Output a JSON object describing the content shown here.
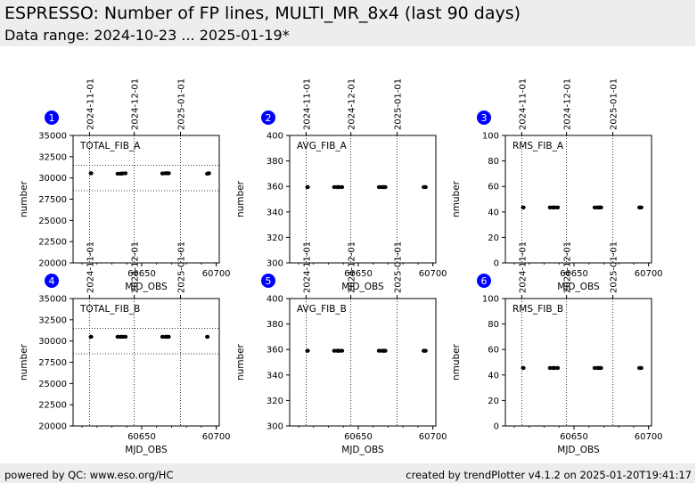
{
  "header": {
    "title": "ESPRESSO: Number of FP lines, MULTI_MR_8x4 (last 90 days)",
    "subtitle": "Data range: 2024-10-23 ... 2025-01-19*"
  },
  "footer": {
    "left": "powered by QC: www.eso.org/HC",
    "right": "created by trendPlotter v4.1.2 on 2025-01-20T19:41:17"
  },
  "colors": {
    "marker": "#000000",
    "badge": "#0000ff",
    "header_bg": "#ededed"
  },
  "date_ticks": [
    {
      "mjd": 60615,
      "label": "2024-11-01"
    },
    {
      "mjd": 60645,
      "label": "2024-12-01"
    },
    {
      "mjd": 60676,
      "label": "2025-01-01"
    }
  ],
  "chart_data": [
    {
      "panel": "1",
      "type": "scatter",
      "label": "TOTAL_FIB_A",
      "xlabel": "MJD_OBS",
      "ylabel": "number",
      "xlim": [
        60604,
        60702
      ],
      "ylim": [
        20000,
        35000
      ],
      "xticks": [
        60650,
        60700
      ],
      "yticks": [
        20000,
        22500,
        25000,
        27500,
        30000,
        32500,
        35000
      ],
      "hlines": [
        28500,
        31500
      ],
      "points": [
        [
          60616,
          30550
        ],
        [
          60634,
          30500
        ],
        [
          60636,
          30500
        ],
        [
          60637,
          30520
        ],
        [
          60639,
          30550
        ],
        [
          60664,
          30520
        ],
        [
          60666,
          30550
        ],
        [
          60667,
          30550
        ],
        [
          60668,
          30550
        ],
        [
          60694,
          30500
        ],
        [
          60695,
          30550
        ]
      ]
    },
    {
      "panel": "2",
      "type": "scatter",
      "label": "AVG_FIB_A",
      "xlabel": "MJD_OBS",
      "ylabel": "number",
      "xlim": [
        60604,
        60702
      ],
      "ylim": [
        300,
        400
      ],
      "xticks": [
        60650,
        60700
      ],
      "yticks": [
        300,
        320,
        340,
        360,
        380,
        400
      ],
      "hlines": [],
      "points": [
        [
          60616,
          359.5
        ],
        [
          60634,
          359.5
        ],
        [
          60636,
          359.5
        ],
        [
          60637,
          359.5
        ],
        [
          60639,
          359.5
        ],
        [
          60664,
          359.5
        ],
        [
          60666,
          359.5
        ],
        [
          60667,
          359.5
        ],
        [
          60668,
          359.5
        ],
        [
          60694,
          359.5
        ],
        [
          60695,
          359.5
        ]
      ]
    },
    {
      "panel": "3",
      "type": "scatter",
      "label": "RMS_FIB_A",
      "xlabel": "MJD_OBS",
      "ylabel": "nmuber",
      "xlim": [
        60604,
        60702
      ],
      "ylim": [
        0,
        100
      ],
      "xticks": [
        60650,
        60700
      ],
      "yticks": [
        0,
        20,
        40,
        60,
        80,
        100
      ],
      "hlines": [],
      "points": [
        [
          60616,
          43.5
        ],
        [
          60634,
          43.5
        ],
        [
          60636,
          43.5
        ],
        [
          60637,
          43.5
        ],
        [
          60639,
          43.5
        ],
        [
          60664,
          43.5
        ],
        [
          60666,
          43.5
        ],
        [
          60667,
          43.5
        ],
        [
          60668,
          43.5
        ],
        [
          60694,
          43.5
        ],
        [
          60695,
          43.5
        ]
      ]
    },
    {
      "panel": "4",
      "type": "scatter",
      "label": "TOTAL_FIB_B",
      "xlabel": "MJD_OBS",
      "ylabel": "number",
      "xlim": [
        60604,
        60702
      ],
      "ylim": [
        20000,
        35000
      ],
      "xticks": [
        60650,
        60700
      ],
      "yticks": [
        20000,
        22500,
        25000,
        27500,
        30000,
        32500,
        35000
      ],
      "hlines": [
        28500,
        31500
      ],
      "points": [
        [
          60616,
          30500
        ],
        [
          60634,
          30500
        ],
        [
          60636,
          30500
        ],
        [
          60637,
          30500
        ],
        [
          60639,
          30500
        ],
        [
          60664,
          30500
        ],
        [
          60666,
          30500
        ],
        [
          60667,
          30500
        ],
        [
          60668,
          30500
        ],
        [
          60694,
          30500
        ]
      ]
    },
    {
      "panel": "5",
      "type": "scatter",
      "label": "AVG_FIB_B",
      "xlabel": "MJD_OBS",
      "ylabel": "number",
      "xlim": [
        60604,
        60702
      ],
      "ylim": [
        300,
        400
      ],
      "xticks": [
        60650,
        60700
      ],
      "yticks": [
        300,
        320,
        340,
        360,
        380,
        400
      ],
      "hlines": [],
      "points": [
        [
          60616,
          359
        ],
        [
          60634,
          359
        ],
        [
          60636,
          359
        ],
        [
          60637,
          359
        ],
        [
          60639,
          359
        ],
        [
          60664,
          359
        ],
        [
          60666,
          359
        ],
        [
          60667,
          359
        ],
        [
          60668,
          359
        ],
        [
          60694,
          359
        ],
        [
          60695,
          359
        ]
      ]
    },
    {
      "panel": "6",
      "type": "scatter",
      "label": "RMS_FIB_B",
      "xlabel": "MJD_OBS",
      "ylabel": "nmuber",
      "xlim": [
        60604,
        60702
      ],
      "ylim": [
        0,
        100
      ],
      "xticks": [
        60650,
        60700
      ],
      "yticks": [
        0,
        20,
        40,
        60,
        80,
        100
      ],
      "hlines": [],
      "points": [
        [
          60616,
          45.5
        ],
        [
          60634,
          45.5
        ],
        [
          60636,
          45.5
        ],
        [
          60637,
          45.5
        ],
        [
          60639,
          45.5
        ],
        [
          60664,
          45.5
        ],
        [
          60666,
          45.5
        ],
        [
          60667,
          45.5
        ],
        [
          60668,
          45.5
        ],
        [
          60694,
          45.5
        ],
        [
          60695,
          45.5
        ]
      ]
    }
  ]
}
